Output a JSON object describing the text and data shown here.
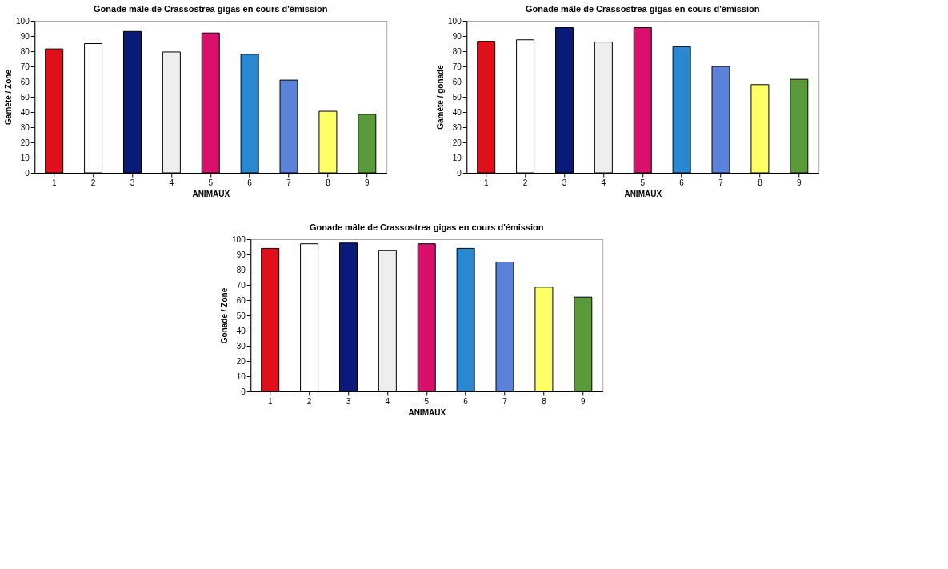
{
  "chart_data": [
    {
      "type": "bar",
      "title": "Gonade mâle de Crassostrea gigas en cours d'émission",
      "xlabel": "ANIMAUX",
      "ylabel": "Gamète / Zone",
      "categories": [
        "1",
        "2",
        "3",
        "4",
        "5",
        "6",
        "7",
        "8",
        "9"
      ],
      "values": [
        81.5,
        85,
        93,
        79.5,
        92,
        78,
        61,
        40.5,
        38.5
      ],
      "colors": [
        "#e0101a",
        "#ffffff",
        "#0a1a7a",
        "#eeeeee",
        "#d8106a",
        "#2a88d0",
        "#5a82d8",
        "#ffff66",
        "#5a9a3a"
      ],
      "ylim": [
        0,
        100
      ],
      "yticks": [
        0,
        10,
        20,
        30,
        40,
        50,
        60,
        70,
        80,
        90,
        100
      ],
      "grid": false
    },
    {
      "type": "bar",
      "title": "Gonade mâle de Crassostrea gigas en cours d'émission",
      "xlabel": "ANIMAUX",
      "ylabel": "Gamète / gonade",
      "categories": [
        "1",
        "2",
        "3",
        "4",
        "5",
        "6",
        "7",
        "8",
        "9"
      ],
      "values": [
        86.5,
        87.5,
        95.5,
        86,
        95.5,
        83,
        70,
        58,
        61.5
      ],
      "colors": [
        "#e0101a",
        "#ffffff",
        "#0a1a7a",
        "#eeeeee",
        "#d8106a",
        "#2a88d0",
        "#5a82d8",
        "#ffff66",
        "#5a9a3a"
      ],
      "ylim": [
        0,
        100
      ],
      "yticks": [
        0,
        10,
        20,
        30,
        40,
        50,
        60,
        70,
        80,
        90,
        100
      ],
      "grid": false
    },
    {
      "type": "bar",
      "title": "Gonade mâle de Crassostrea gigas en cours d'émission",
      "xlabel": "ANIMAUX",
      "ylabel": "Gonade / Zone",
      "categories": [
        "1",
        "2",
        "3",
        "4",
        "5",
        "6",
        "7",
        "8",
        "9"
      ],
      "values": [
        94,
        97,
        97.5,
        92.5,
        97,
        94,
        85,
        68.5,
        62
      ],
      "colors": [
        "#e0101a",
        "#ffffff",
        "#0a1a7a",
        "#eeeeee",
        "#d8106a",
        "#2a88d0",
        "#5a82d8",
        "#ffff66",
        "#5a9a3a"
      ],
      "ylim": [
        0,
        100
      ],
      "yticks": [
        0,
        10,
        20,
        30,
        40,
        50,
        60,
        70,
        80,
        90,
        100
      ],
      "grid": false
    }
  ]
}
